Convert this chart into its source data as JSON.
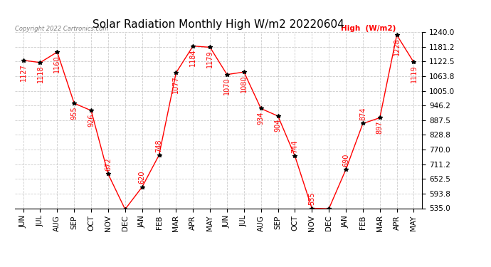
{
  "title": "Solar Radiation Monthly High W/m2 20220604",
  "copyright": "Copyright 2022 Cartronics.com",
  "legend_label": "High  (W/m2)",
  "months": [
    "JUN",
    "JUL",
    "AUG",
    "SEP",
    "OCT",
    "NOV",
    "DEC",
    "JAN",
    "FEB",
    "MAR",
    "APR",
    "MAY",
    "JUN",
    "JUL",
    "AUG",
    "SEP",
    "OCT",
    "NOV",
    "DEC",
    "JAN",
    "FEB",
    "MAR",
    "APR",
    "MAY"
  ],
  "values": [
    1127,
    1118,
    1160,
    955,
    926,
    672,
    531,
    620,
    748,
    1077,
    1184,
    1179,
    1070,
    1080,
    934,
    904,
    744,
    535,
    533,
    690,
    874,
    897,
    1228,
    1119
  ],
  "ylim_min": 535.0,
  "ylim_max": 1240.0,
  "line_color": "red",
  "marker_color": "black",
  "bg_color": "#ffffff",
  "grid_color": "#cccccc",
  "title_fontsize": 11,
  "label_fontsize": 7.5,
  "annotation_fontsize": 7,
  "ytick_values": [
    535.0,
    593.8,
    652.5,
    711.2,
    770.0,
    828.8,
    887.5,
    946.2,
    1005.0,
    1063.8,
    1122.5,
    1181.2,
    1240.0
  ]
}
